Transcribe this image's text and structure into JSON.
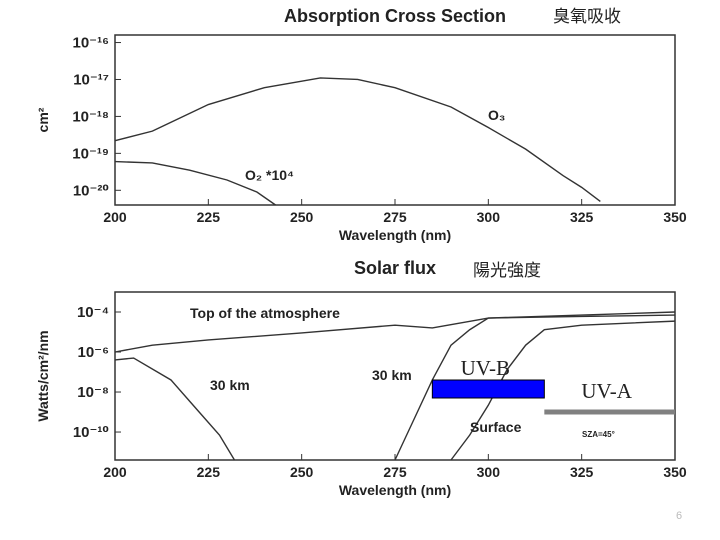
{
  "chart_data": [
    {
      "type": "line",
      "title": "Absorption Cross Section",
      "annotation": "臭氧吸收",
      "xlabel": "Wavelength (nm)",
      "ylabel": "cm²",
      "log_y": true,
      "xlim": [
        200,
        350
      ],
      "xticks": [
        200,
        225,
        250,
        275,
        300,
        325,
        350
      ],
      "ylim": [
        4e-21,
        1.6e-16
      ],
      "yticks": [
        {
          "value": 1e-16,
          "label": "10⁻¹⁶"
        },
        {
          "value": 1e-17,
          "label": "10⁻¹⁷"
        },
        {
          "value": 1e-18,
          "label": "10⁻¹⁸"
        },
        {
          "value": 1e-19,
          "label": "10⁻¹⁹"
        },
        {
          "value": 1e-20,
          "label": "10⁻²⁰"
        }
      ],
      "series": [
        {
          "name": "O₃",
          "color": "#333333",
          "x": [
            200,
            210,
            225,
            240,
            255,
            265,
            275,
            290,
            300,
            310,
            320,
            325,
            330
          ],
          "values": [
            2.2e-19,
            4e-19,
            2.1e-18,
            6e-18,
            1.1e-17,
            1e-17,
            6e-18,
            1.8e-18,
            5e-19,
            1.3e-19,
            2.5e-20,
            1.2e-20,
            5e-21
          ]
        },
        {
          "name": "O₂ *10⁴",
          "color": "#333333",
          "x": [
            200,
            210,
            220,
            230,
            238,
            243
          ],
          "values": [
            6e-20,
            5.5e-20,
            3.5e-20,
            1.9e-20,
            9e-21,
            4e-21
          ]
        }
      ]
    },
    {
      "type": "line",
      "title": "Solar flux",
      "annotation": "陽光強度",
      "xlabel": "Wavelength (nm)",
      "ylabel": "Watts/cm²/nm",
      "log_y": true,
      "xlim": [
        200,
        350
      ],
      "xticks": [
        200,
        225,
        250,
        275,
        300,
        325,
        350
      ],
      "ylim": [
        4e-12,
        0.001
      ],
      "yticks": [
        {
          "value": 0.0001,
          "label": "10⁻⁴"
        },
        {
          "value": 1e-06,
          "label": "10⁻⁶"
        },
        {
          "value": 1e-08,
          "label": "10⁻⁸"
        },
        {
          "value": 1e-10,
          "label": "10⁻¹⁰"
        }
      ],
      "note": "SZA=45°",
      "series": [
        {
          "name": "Top of the atmosphere",
          "color": "#333333",
          "x": [
            200,
            210,
            225,
            250,
            275,
            285,
            300,
            325,
            350
          ],
          "values": [
            1e-06,
            2.2e-06,
            4e-06,
            9e-06,
            2.2e-05,
            1.6e-05,
            5e-05,
            7e-05,
            0.0001
          ]
        },
        {
          "name": "30 km",
          "color": "#333333",
          "x": [
            200,
            205,
            215,
            222,
            228,
            232
          ],
          "values": [
            4e-07,
            5e-07,
            4e-08,
            1.3e-09,
            7e-11,
            4e-12
          ]
        },
        {
          "name": "30 km",
          "color": "#333333",
          "x": [
            275,
            280,
            285,
            290,
            295,
            300,
            325,
            350
          ],
          "values": [
            4e-12,
            4e-10,
            4e-08,
            2.2e-06,
            1.3e-05,
            5e-05,
            6e-05,
            7e-05
          ]
        },
        {
          "name": "Surface",
          "color": "#333333",
          "x": [
            290,
            295,
            300,
            305,
            310,
            315,
            325,
            350
          ],
          "values": [
            4e-12,
            7e-11,
            2.2e-09,
            1.3e-07,
            2.2e-06,
            1.3e-05,
            2.2e-05,
            3.5e-05
          ]
        }
      ],
      "bands": [
        {
          "label": "UV-B",
          "range": [
            285,
            315
          ],
          "color": "#0000ff"
        },
        {
          "label": "UV-A",
          "range": [
            315,
            350
          ],
          "color": "#808080"
        }
      ]
    }
  ],
  "page_number": "6"
}
